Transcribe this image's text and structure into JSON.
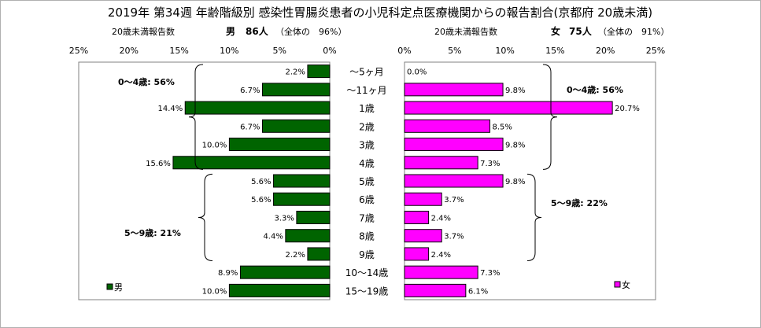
{
  "chart_data": {
    "type": "bar",
    "title": "2019年 第34週 年齢階級別 感染性胃腸炎患者の小児科定点医療機関からの報告割合(京都府 20歳未満)",
    "categories": [
      "～5ヶ月",
      "～11ヶ月",
      "1歳",
      "2歳",
      "3歳",
      "4歳",
      "5歳",
      "6歳",
      "7歳",
      "8歳",
      "9歳",
      "10～14歳",
      "15～19歳"
    ],
    "xlim": [
      0,
      25
    ],
    "ticks": [
      "25%",
      "20%",
      "15%",
      "10%",
      "5%",
      "0%"
    ],
    "ticks_right": [
      "0%",
      "5%",
      "10%",
      "15%",
      "20%",
      "25%"
    ],
    "grid": false,
    "series": [
      {
        "name": "男",
        "header_label": "20歳未満報告数",
        "header_sex": "男",
        "header_count": "86人",
        "header_ratio": "（全体の　96%）",
        "color": "#006400",
        "values": [
          2.2,
          6.7,
          14.4,
          6.7,
          10.0,
          15.6,
          5.6,
          5.6,
          3.3,
          4.4,
          2.2,
          8.9,
          10.0
        ],
        "labels": [
          "2.2%",
          "6.7%",
          "14.4%",
          "6.7%",
          "10.0%",
          "15.6%",
          "5.6%",
          "5.6%",
          "3.3%",
          "4.4%",
          "2.2%",
          "8.9%",
          "10.0%"
        ],
        "annotations": [
          "0～4歳: 56%",
          "5～9歳: 21%"
        ]
      },
      {
        "name": "女",
        "header_label": "20歳未満報告数",
        "header_sex": "女",
        "header_count": "75人",
        "header_ratio": "（全体の　91%）",
        "color": "#ff00ff",
        "values": [
          0.0,
          9.8,
          20.7,
          8.5,
          9.8,
          7.3,
          9.8,
          3.7,
          2.4,
          3.7,
          2.4,
          7.3,
          6.1
        ],
        "labels": [
          "0.0%",
          "9.8%",
          "20.7%",
          "8.5%",
          "9.8%",
          "7.3%",
          "9.8%",
          "3.7%",
          "2.4%",
          "3.7%",
          "2.4%",
          "7.3%",
          "6.1%"
        ],
        "annotations": [
          "0～4歳: 56%",
          "5～9歳: 22%"
        ]
      }
    ]
  }
}
